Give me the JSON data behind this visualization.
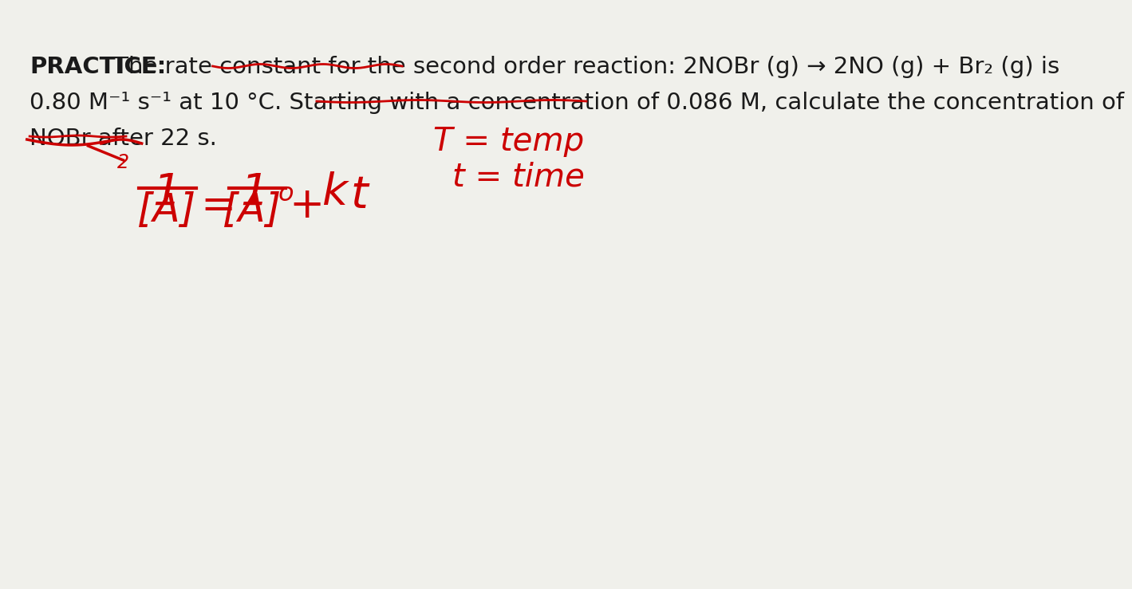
{
  "bg_color": "#f0f0eb",
  "text_color": "#1a1a1a",
  "red_color": "#cc0000",
  "practice_bold": "PRACTICE:",
  "practice_text": " The rate constant for the second order reaction: 2NOBr (g) → 2NO (g) + Br₂ (g) is",
  "line2_text": "0.80 M⁻¹ s⁻¹ at 10 °C. Starting with a concentration of 0.086 M, calculate the concentration of",
  "line3_text": "NOBr after 22 s.",
  "annotation_T": "T = temp",
  "annotation_t": "t = time"
}
